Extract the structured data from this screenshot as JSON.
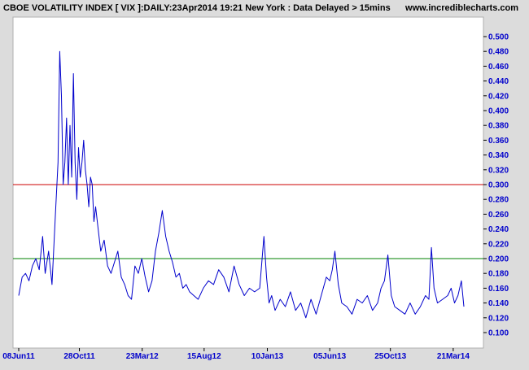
{
  "chart_data": {
    "type": "line",
    "title": "CBOE VOLATILITY INDEX [ VIX ]:DAILY:23Apr2014 19:21 New York : Data Delayed > 15mins",
    "source": "www.incrediblecharts.com",
    "xlabel": "",
    "ylabel": "",
    "ylim": [
      0.09,
      0.51
    ],
    "y_ticks": [
      "0.100",
      "0.120",
      "0.140",
      "0.160",
      "0.180",
      "0.200",
      "0.220",
      "0.240",
      "0.260",
      "0.280",
      "0.300",
      "0.320",
      "0.340",
      "0.360",
      "0.380",
      "0.400",
      "0.420",
      "0.440",
      "0.460",
      "0.480",
      "0.500"
    ],
    "x_tick_labels": [
      {
        "label": "08Jun11",
        "x": 0
      },
      {
        "label": "28Oct11",
        "x": 142
      },
      {
        "label": "23Mar12",
        "x": 289
      },
      {
        "label": "15Aug12",
        "x": 434
      },
      {
        "label": "10Jan13",
        "x": 582
      },
      {
        "label": "05Jun13",
        "x": 728
      },
      {
        "label": "25Oct13",
        "x": 870
      },
      {
        "label": "21Mar14",
        "x": 1017
      }
    ],
    "grid": false,
    "reference_lines": [
      {
        "value": 0.3,
        "color": "#cc0000"
      },
      {
        "value": 0.2,
        "color": "#008000"
      }
    ],
    "series": [
      {
        "color": "#0000cc",
        "x": [
          0,
          8,
          16,
          24,
          32,
          40,
          48,
          56,
          62,
          70,
          78,
          86,
          92,
          96,
          100,
          104,
          108,
          112,
          116,
          120,
          124,
          128,
          132,
          136,
          140,
          144,
          148,
          152,
          156,
          160,
          164,
          168,
          172,
          176,
          180,
          186,
          192,
          200,
          208,
          216,
          224,
          232,
          240,
          248,
          256,
          264,
          272,
          280,
          288,
          296,
          304,
          312,
          320,
          328,
          336,
          344,
          352,
          360,
          368,
          376,
          384,
          392,
          400,
          410,
          420,
          432,
          444,
          456,
          468,
          480,
          492,
          504,
          516,
          528,
          540,
          552,
          564,
          574,
          580,
          586,
          592,
          600,
          612,
          624,
          636,
          648,
          660,
          672,
          684,
          696,
          708,
          720,
          728,
          734,
          740,
          748,
          756,
          768,
          780,
          792,
          804,
          816,
          828,
          840,
          848,
          856,
          864,
          872,
          880,
          892,
          904,
          916,
          928,
          940,
          952,
          960,
          966,
          972,
          980,
          992,
          1004,
          1012,
          1020,
          1028,
          1036,
          1042
        ],
        "values": [
          0.15,
          0.175,
          0.18,
          0.17,
          0.19,
          0.2,
          0.185,
          0.23,
          0.18,
          0.21,
          0.165,
          0.26,
          0.33,
          0.48,
          0.42,
          0.3,
          0.33,
          0.39,
          0.3,
          0.38,
          0.31,
          0.45,
          0.33,
          0.28,
          0.35,
          0.31,
          0.33,
          0.36,
          0.32,
          0.3,
          0.27,
          0.31,
          0.3,
          0.25,
          0.27,
          0.24,
          0.21,
          0.225,
          0.19,
          0.18,
          0.195,
          0.21,
          0.175,
          0.165,
          0.15,
          0.145,
          0.19,
          0.18,
          0.2,
          0.175,
          0.155,
          0.17,
          0.21,
          0.235,
          0.265,
          0.23,
          0.21,
          0.195,
          0.175,
          0.18,
          0.16,
          0.165,
          0.155,
          0.15,
          0.145,
          0.16,
          0.17,
          0.165,
          0.185,
          0.175,
          0.155,
          0.19,
          0.165,
          0.15,
          0.16,
          0.155,
          0.16,
          0.23,
          0.175,
          0.14,
          0.15,
          0.13,
          0.145,
          0.135,
          0.155,
          0.13,
          0.14,
          0.12,
          0.145,
          0.125,
          0.15,
          0.175,
          0.17,
          0.185,
          0.21,
          0.165,
          0.14,
          0.135,
          0.125,
          0.145,
          0.14,
          0.15,
          0.13,
          0.14,
          0.16,
          0.17,
          0.205,
          0.15,
          0.135,
          0.13,
          0.125,
          0.14,
          0.125,
          0.135,
          0.15,
          0.145,
          0.215,
          0.16,
          0.14,
          0.145,
          0.15,
          0.16,
          0.14,
          0.15,
          0.17,
          0.135
        ]
      }
    ]
  }
}
